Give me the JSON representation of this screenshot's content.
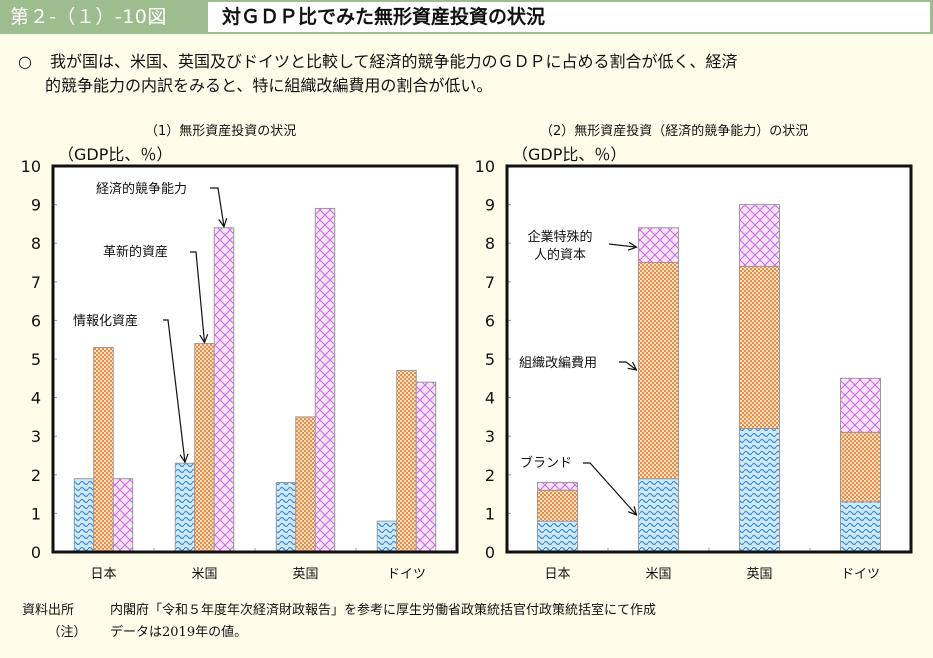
{
  "header": {
    "figure_number": "第２-（１）-10図",
    "title": "対ＧＤＰ比でみた無形資産投資の状況"
  },
  "summary": {
    "bullet": "○",
    "line1": "我が国は、米国、英国及びドイツと比較して経済的競争能力のＧＤＰに占める割合が低く、経済",
    "line2": "的競争能力の内訳をみると、特に組織改編費用の割合が低い。"
  },
  "colors": {
    "header_bg": "#9dbd8e",
    "page_bg": "#fefdea",
    "blue": "#3b8fd8",
    "blue_bg": "#cfe9fb",
    "orange": "#f08a3c",
    "orange_bg": "#fde3cc",
    "pink": "#c36be0",
    "pink_bg": "#fbe3fb"
  },
  "chart_data": [
    {
      "type": "bar",
      "title": "（1）無形資産投資の状況",
      "ylabel": "（GDP比、％）",
      "xlabel": "",
      "ylim": [
        0,
        10
      ],
      "yticks": [
        0,
        1,
        2,
        3,
        4,
        5,
        6,
        7,
        8,
        9,
        10
      ],
      "grid": false,
      "categories": [
        "日本",
        "米国",
        "英国",
        "ドイツ"
      ],
      "series": [
        {
          "name": "情報化資産",
          "pattern": "wave-blue",
          "values": [
            1.9,
            2.3,
            1.8,
            0.8
          ]
        },
        {
          "name": "革新的資産",
          "pattern": "dots-orange",
          "values": [
            5.3,
            5.4,
            3.5,
            4.7
          ]
        },
        {
          "name": "経済的競争能力",
          "pattern": "cross-pink",
          "values": [
            1.9,
            8.4,
            8.9,
            4.4
          ]
        }
      ],
      "annotations": [
        {
          "text": "経済的競争能力",
          "series": 2,
          "category": 1
        },
        {
          "text": "革新的資産",
          "series": 1,
          "category": 1
        },
        {
          "text": "情報化資産",
          "series": 0,
          "category": 1
        }
      ]
    },
    {
      "type": "bar",
      "stacked": true,
      "title": "（2）無形資産投資（経済的競争能力）の状況",
      "ylabel": "（GDP比、％）",
      "xlabel": "",
      "ylim": [
        0,
        10
      ],
      "yticks": [
        0,
        1,
        2,
        3,
        4,
        5,
        6,
        7,
        8,
        9,
        10
      ],
      "grid": false,
      "categories": [
        "日本",
        "米国",
        "英国",
        "ドイツ"
      ],
      "series": [
        {
          "name": "ブランド",
          "pattern": "wave-blue",
          "values": [
            0.8,
            1.9,
            3.2,
            1.3
          ]
        },
        {
          "name": "組織改編費用",
          "pattern": "dots-orange",
          "values": [
            0.8,
            5.6,
            4.2,
            1.8
          ]
        },
        {
          "name": "企業特殊的人的資本",
          "pattern": "cross-pink",
          "values": [
            0.2,
            0.9,
            1.6,
            1.4
          ]
        }
      ],
      "annotations": [
        {
          "text": [
            "企業特殊的",
            "人的資本"
          ],
          "series": 2,
          "category": 1
        },
        {
          "text": "組織改編費用",
          "series": 1,
          "category": 1
        },
        {
          "text": "ブランド",
          "series": 0,
          "category": 1
        }
      ]
    }
  ],
  "notes": {
    "source_label": "資料出所",
    "source_text": "内閣府「令和５年度年次経済財政報告」を参考に厚生労働省政策統括官付政策統括室にて作成",
    "note_label": "（注）",
    "note_text": "データは2019年の値。"
  }
}
